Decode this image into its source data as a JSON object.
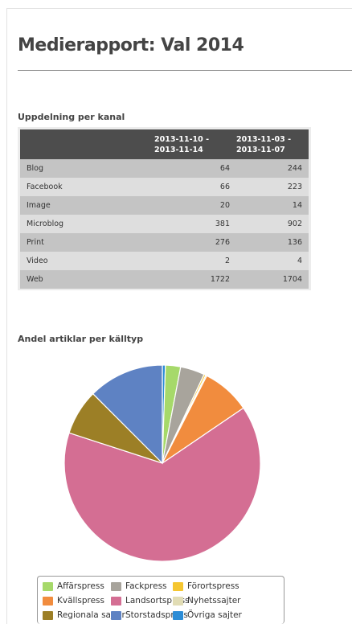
{
  "page": {
    "title": "Medierapport: Val 2014"
  },
  "table_section": {
    "heading": "Uppdelning per kanal",
    "columns": [
      "",
      "2013-11-10 - 2013-11-14",
      "2013-11-03 - 2013-11-07"
    ],
    "column_lines": [
      [
        "",
        ""
      ],
      [
        "2013-11-10 -",
        "2013-11-14"
      ],
      [
        "2013-11-03 -",
        "2013-11-07"
      ]
    ],
    "rows": [
      {
        "label": "Blog",
        "v1": "64",
        "v2": "244"
      },
      {
        "label": "Facebook",
        "v1": "66",
        "v2": "223"
      },
      {
        "label": "Image",
        "v1": "20",
        "v2": "14"
      },
      {
        "label": "Microblog",
        "v1": "381",
        "v2": "902"
      },
      {
        "label": "Print",
        "v1": "276",
        "v2": "136"
      },
      {
        "label": "Video",
        "v1": "2",
        "v2": "4"
      },
      {
        "label": "Web",
        "v1": "1722",
        "v2": "1704"
      }
    ]
  },
  "chart_section": {
    "heading": "Andel artiklar per källtyp"
  },
  "chart_data": {
    "type": "pie",
    "title": "Andel artiklar per källtyp",
    "unit": "percent",
    "slices": [
      {
        "name": "Övriga sajter",
        "value": 0.5,
        "color": "#2b8cd6"
      },
      {
        "name": "Affärspress",
        "value": 2.5,
        "color": "#a6d96a"
      },
      {
        "name": "Fackpress",
        "value": 4.0,
        "color": "#a8a49c"
      },
      {
        "name": "Förortspress",
        "value": 0.3,
        "color": "#f5c630"
      },
      {
        "name": "Nyhetssajter",
        "value": 0.2,
        "color": "#e1dcb4"
      },
      {
        "name": "Kvällspress",
        "value": 8.0,
        "color": "#f18c3e"
      },
      {
        "name": "Landsortspress",
        "value": 64.5,
        "color": "#d46e93"
      },
      {
        "name": "Regionala sajter",
        "value": 7.5,
        "color": "#9c7f26"
      },
      {
        "name": "Storstadspress",
        "value": 12.5,
        "color": "#5e82c3"
      }
    ],
    "legend_order": [
      "Affärspress",
      "Fackpress",
      "Förortspress",
      "Kvällspress",
      "Landsortspress",
      "Nyhetssajter",
      "Regionala sajter",
      "Storstadspress",
      "Övriga sajter"
    ],
    "legend_placement": "bottom"
  }
}
